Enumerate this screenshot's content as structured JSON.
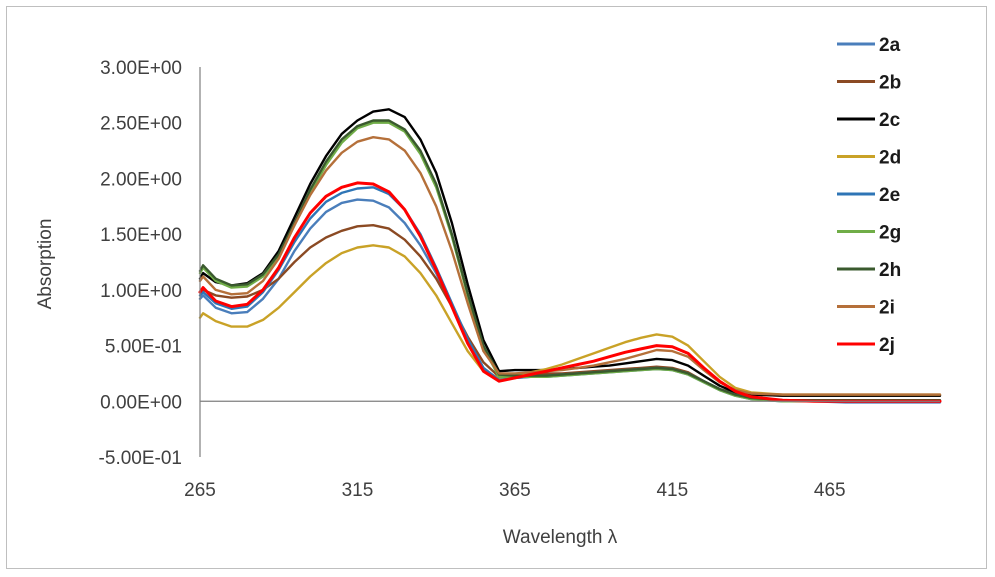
{
  "chart_data": {
    "type": "line",
    "title": "",
    "xlabel": "Wavelength λ",
    "ylabel": "Absorption",
    "xlim": [
      265,
      500
    ],
    "ylim": [
      -0.5,
      3.0
    ],
    "x_ticks": [
      "265",
      "315",
      "365",
      "415",
      "465"
    ],
    "y_ticks": [
      "3.00E+00",
      "2.50E+00",
      "2.00E+00",
      "1.50E+00",
      "1.00E+00",
      "5.00E-01",
      "0.00E+00",
      "-5.00E-01"
    ],
    "grid": false,
    "legend_position": "right",
    "x": [
      265,
      266,
      270,
      275,
      280,
      285,
      290,
      295,
      300,
      305,
      310,
      315,
      320,
      325,
      330,
      335,
      340,
      345,
      350,
      355,
      360,
      365,
      370,
      375,
      380,
      385,
      390,
      395,
      400,
      405,
      410,
      415,
      420,
      425,
      430,
      435,
      440,
      450,
      460,
      470,
      480,
      490,
      500
    ],
    "series": [
      {
        "name": "2a",
        "color": "#4a7ebb",
        "values": [
          0.92,
          0.95,
          0.84,
          0.79,
          0.8,
          0.92,
          1.1,
          1.35,
          1.55,
          1.7,
          1.78,
          1.81,
          1.8,
          1.74,
          1.6,
          1.4,
          1.15,
          0.85,
          0.55,
          0.3,
          0.19,
          0.21,
          0.22,
          0.22,
          0.23,
          0.24,
          0.25,
          0.26,
          0.27,
          0.28,
          0.29,
          0.28,
          0.24,
          0.17,
          0.1,
          0.05,
          0.02,
          0.0,
          0.0,
          -0.01,
          -0.01,
          -0.01,
          -0.01
        ]
      },
      {
        "name": "2b",
        "color": "#8b4a23",
        "values": [
          0.98,
          1.0,
          0.95,
          0.93,
          0.94,
          1.0,
          1.1,
          1.25,
          1.38,
          1.47,
          1.53,
          1.57,
          1.58,
          1.55,
          1.45,
          1.3,
          1.1,
          0.85,
          0.58,
          0.35,
          0.22,
          0.23,
          0.24,
          0.25,
          0.25,
          0.26,
          0.27,
          0.28,
          0.29,
          0.3,
          0.31,
          0.3,
          0.26,
          0.18,
          0.11,
          0.07,
          0.06,
          0.05,
          0.05,
          0.05,
          0.05,
          0.05,
          0.05
        ]
      },
      {
        "name": "2c",
        "color": "#000000",
        "values": [
          1.1,
          1.15,
          1.07,
          1.04,
          1.06,
          1.15,
          1.35,
          1.65,
          1.95,
          2.2,
          2.4,
          2.52,
          2.6,
          2.62,
          2.55,
          2.35,
          2.05,
          1.6,
          1.05,
          0.55,
          0.27,
          0.28,
          0.28,
          0.28,
          0.29,
          0.3,
          0.31,
          0.32,
          0.34,
          0.36,
          0.38,
          0.37,
          0.32,
          0.23,
          0.14,
          0.08,
          0.06,
          0.05,
          0.05,
          0.05,
          0.05,
          0.05,
          0.05
        ]
      },
      {
        "name": "2d",
        "color": "#c9a227",
        "values": [
          0.75,
          0.79,
          0.72,
          0.67,
          0.67,
          0.73,
          0.84,
          0.98,
          1.12,
          1.24,
          1.33,
          1.38,
          1.4,
          1.38,
          1.3,
          1.15,
          0.95,
          0.7,
          0.45,
          0.27,
          0.21,
          0.23,
          0.26,
          0.29,
          0.33,
          0.38,
          0.43,
          0.48,
          0.53,
          0.57,
          0.6,
          0.58,
          0.5,
          0.36,
          0.22,
          0.12,
          0.08,
          0.06,
          0.06,
          0.06,
          0.06,
          0.06,
          0.06
        ]
      },
      {
        "name": "2e",
        "color": "#2e75b6",
        "values": [
          0.95,
          0.98,
          0.88,
          0.83,
          0.85,
          0.98,
          1.18,
          1.43,
          1.64,
          1.79,
          1.87,
          1.91,
          1.92,
          1.86,
          1.72,
          1.5,
          1.2,
          0.88,
          0.56,
          0.3,
          0.19,
          0.21,
          0.22,
          0.23,
          0.24,
          0.25,
          0.26,
          0.27,
          0.28,
          0.29,
          0.3,
          0.29,
          0.25,
          0.18,
          0.11,
          0.06,
          0.03,
          0.01,
          0.0,
          0.0,
          0.0,
          0.0,
          0.0
        ]
      },
      {
        "name": "2g",
        "color": "#70ad47",
        "values": [
          1.15,
          1.2,
          1.08,
          1.02,
          1.03,
          1.12,
          1.3,
          1.58,
          1.87,
          2.12,
          2.32,
          2.45,
          2.5,
          2.5,
          2.42,
          2.22,
          1.92,
          1.48,
          0.95,
          0.48,
          0.22,
          0.22,
          0.22,
          0.22,
          0.23,
          0.24,
          0.25,
          0.26,
          0.27,
          0.28,
          0.29,
          0.28,
          0.24,
          0.17,
          0.1,
          0.05,
          0.02,
          0.0,
          0.0,
          0.0,
          0.0,
          0.0,
          0.0
        ]
      },
      {
        "name": "2h",
        "color": "#3a5a2e",
        "values": [
          1.17,
          1.22,
          1.1,
          1.04,
          1.05,
          1.14,
          1.32,
          1.6,
          1.9,
          2.15,
          2.35,
          2.47,
          2.52,
          2.52,
          2.44,
          2.25,
          1.95,
          1.5,
          0.97,
          0.5,
          0.24,
          0.23,
          0.23,
          0.23,
          0.24,
          0.25,
          0.26,
          0.27,
          0.28,
          0.29,
          0.3,
          0.29,
          0.25,
          0.18,
          0.11,
          0.06,
          0.03,
          0.01,
          0.01,
          0.01,
          0.01,
          0.01,
          0.01
        ]
      },
      {
        "name": "2i",
        "color": "#b5703a",
        "values": [
          1.08,
          1.12,
          1.0,
          0.96,
          0.97,
          1.08,
          1.28,
          1.58,
          1.85,
          2.07,
          2.23,
          2.33,
          2.37,
          2.35,
          2.25,
          2.05,
          1.75,
          1.35,
          0.88,
          0.45,
          0.25,
          0.25,
          0.26,
          0.27,
          0.28,
          0.3,
          0.32,
          0.35,
          0.38,
          0.42,
          0.46,
          0.45,
          0.4,
          0.28,
          0.17,
          0.1,
          0.07,
          0.06,
          0.06,
          0.06,
          0.06,
          0.06,
          0.06
        ]
      },
      {
        "name": "2j",
        "color": "#ff0000",
        "values": [
          0.98,
          1.02,
          0.9,
          0.85,
          0.87,
          1.0,
          1.2,
          1.47,
          1.69,
          1.84,
          1.92,
          1.96,
          1.95,
          1.88,
          1.72,
          1.48,
          1.18,
          0.85,
          0.52,
          0.27,
          0.18,
          0.21,
          0.24,
          0.27,
          0.3,
          0.33,
          0.36,
          0.4,
          0.44,
          0.47,
          0.5,
          0.49,
          0.43,
          0.3,
          0.18,
          0.09,
          0.04,
          0.01,
          0.0,
          0.0,
          0.0,
          0.0,
          0.0
        ]
      }
    ]
  }
}
